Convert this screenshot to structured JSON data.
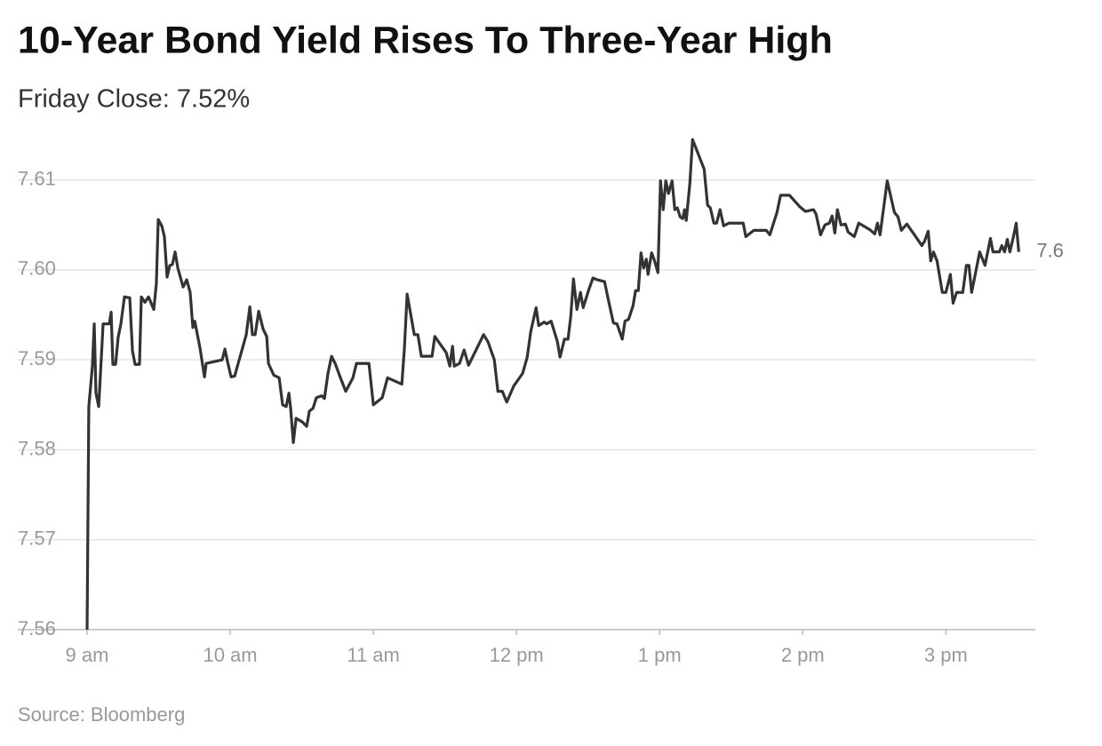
{
  "chart_data": {
    "type": "line",
    "title": "10-Year Bond Yield Rises To Three-Year High",
    "subtitle": "Friday Close: 7.52%",
    "source": "Source: Bloomberg",
    "x": [
      9.0,
      9.012,
      9.037,
      9.05,
      9.062,
      9.081,
      9.112,
      9.155,
      9.168,
      9.18,
      9.199,
      9.217,
      9.236,
      9.261,
      9.298,
      9.317,
      9.335,
      9.366,
      9.379,
      9.404,
      9.429,
      9.466,
      9.484,
      9.497,
      9.522,
      9.54,
      9.559,
      9.578,
      9.596,
      9.615,
      9.634,
      9.671,
      9.696,
      9.72,
      9.739,
      9.752,
      9.789,
      9.82,
      9.832,
      9.944,
      9.963,
      9.981,
      10.006,
      10.031,
      10.112,
      10.137,
      10.155,
      10.174,
      10.199,
      10.23,
      10.255,
      10.267,
      10.304,
      10.342,
      10.366,
      10.391,
      10.41,
      10.422,
      10.441,
      10.46,
      10.503,
      10.534,
      10.553,
      10.578,
      10.602,
      10.64,
      10.658,
      10.683,
      10.708,
      10.733,
      10.77,
      10.807,
      10.857,
      10.882,
      10.969,
      11.0,
      11.062,
      11.099,
      11.199,
      11.217,
      11.236,
      11.286,
      11.311,
      11.335,
      11.41,
      11.429,
      11.509,
      11.534,
      11.553,
      11.565,
      11.602,
      11.634,
      11.665,
      11.77,
      11.801,
      11.845,
      11.87,
      11.901,
      11.932,
      11.981,
      12.043,
      12.075,
      12.099,
      12.137,
      12.155,
      12.193,
      12.211,
      12.242,
      12.267,
      12.286,
      12.304,
      12.335,
      12.36,
      12.379,
      12.398,
      12.422,
      12.447,
      12.466,
      12.503,
      12.534,
      12.565,
      12.615,
      12.64,
      12.677,
      12.702,
      12.739,
      12.758,
      12.783,
      12.814,
      12.832,
      12.851,
      12.87,
      12.888,
      12.907,
      12.919,
      12.944,
      12.963,
      12.988,
      13.006,
      13.025,
      13.043,
      13.062,
      13.087,
      13.106,
      13.124,
      13.143,
      13.161,
      13.174,
      13.186,
      13.211,
      13.23,
      13.311,
      13.335,
      13.354,
      13.379,
      13.398,
      13.422,
      13.447,
      13.484,
      13.584,
      13.602,
      13.658,
      13.745,
      13.77,
      13.82,
      13.845,
      13.907,
      13.981,
      14.019,
      14.075,
      14.093,
      14.124,
      14.155,
      14.186,
      14.205,
      14.224,
      14.242,
      14.267,
      14.298,
      14.317,
      14.36,
      14.391,
      14.466,
      14.503,
      14.522,
      14.54,
      14.59,
      14.64,
      14.665,
      14.689,
      14.727,
      14.789,
      14.832,
      14.851,
      14.876,
      14.894,
      14.913,
      14.938,
      14.975,
      15.0,
      15.031,
      15.05,
      15.075,
      15.118,
      15.143,
      15.161,
      15.18,
      15.236,
      15.273,
      15.311,
      15.329,
      15.373,
      15.391,
      15.41,
      15.429,
      15.447,
      15.472,
      15.491,
      15.509
    ],
    "series": [
      {
        "name": "10-Year Bond Yield",
        "color": "#333333",
        "values": [
          7.56,
          7.5848,
          7.5893,
          7.594,
          7.5863,
          7.5848,
          7.594,
          7.594,
          7.5953,
          7.5895,
          7.5895,
          7.5925,
          7.594,
          7.597,
          7.5969,
          7.591,
          7.5895,
          7.5895,
          7.597,
          7.5964,
          7.597,
          7.5956,
          7.5985,
          7.6056,
          7.6049,
          7.6037,
          7.5992,
          7.6005,
          7.6006,
          7.602,
          7.6002,
          7.5981,
          7.5989,
          7.5975,
          7.5936,
          7.5943,
          7.5913,
          7.5881,
          7.5896,
          7.59,
          7.5912,
          7.5898,
          7.5881,
          7.5882,
          7.5928,
          7.5959,
          7.5928,
          7.5928,
          7.5954,
          7.5934,
          7.5926,
          7.5896,
          7.5883,
          7.588,
          7.585,
          7.5848,
          7.5863,
          7.5846,
          7.5808,
          7.5835,
          7.5831,
          7.5826,
          7.5843,
          7.5846,
          7.5858,
          7.586,
          7.5857,
          7.5885,
          7.5904,
          7.5896,
          7.588,
          7.5865,
          7.588,
          7.5896,
          7.5896,
          7.585,
          7.5858,
          7.588,
          7.5873,
          7.5913,
          7.5973,
          7.5928,
          7.5928,
          7.5904,
          7.5904,
          7.5926,
          7.5908,
          7.5893,
          7.5915,
          7.5893,
          7.5896,
          7.5911,
          7.5894,
          7.5928,
          7.592,
          7.59,
          7.5865,
          7.5865,
          7.5853,
          7.5871,
          7.5885,
          7.5903,
          7.5931,
          7.5958,
          7.5938,
          7.5942,
          7.594,
          7.5943,
          7.593,
          7.592,
          7.5903,
          7.5923,
          7.5923,
          7.5948,
          7.599,
          7.5956,
          7.5975,
          7.5958,
          7.5977,
          7.5991,
          7.5989,
          7.5987,
          7.5968,
          7.5941,
          7.594,
          7.5923,
          7.5943,
          7.5945,
          7.596,
          7.5977,
          7.5977,
          7.6019,
          7.6002,
          7.6012,
          7.5995,
          7.6019,
          7.6011,
          7.5997,
          7.6099,
          7.6067,
          7.6099,
          7.6085,
          7.6099,
          7.6067,
          7.6069,
          7.6059,
          7.6057,
          7.6067,
          7.6055,
          7.6096,
          7.6145,
          7.6112,
          7.6072,
          7.6069,
          7.6052,
          7.6052,
          7.6067,
          7.6049,
          7.6052,
          7.6052,
          7.6037,
          7.6044,
          7.6044,
          7.6039,
          7.6064,
          7.6083,
          7.6083,
          7.607,
          7.6065,
          7.6067,
          7.6062,
          7.6039,
          7.605,
          7.6052,
          7.606,
          7.6041,
          7.6067,
          7.605,
          7.6051,
          7.6042,
          7.6037,
          7.6052,
          7.6045,
          7.604,
          7.6052,
          7.6039,
          7.6099,
          7.6064,
          7.6059,
          7.6044,
          7.6051,
          7.6037,
          7.6027,
          7.6032,
          7.6043,
          7.601,
          7.602,
          7.601,
          7.5975,
          7.5975,
          7.5995,
          7.5963,
          7.5975,
          7.5975,
          7.6005,
          7.6005,
          7.5975,
          7.602,
          7.6005,
          7.6035,
          7.602,
          7.602,
          7.6027,
          7.602,
          7.6034,
          7.602,
          7.6037,
          7.6052,
          7.602
        ]
      }
    ],
    "last_value_label": "7.6",
    "xlim": [
      9,
      15.6
    ],
    "xticks": [
      {
        "value": 9,
        "label": "9 am"
      },
      {
        "value": 10,
        "label": "10 am"
      },
      {
        "value": 11,
        "label": "11 am"
      },
      {
        "value": 12,
        "label": "12 pm"
      },
      {
        "value": 13,
        "label": "1 pm"
      },
      {
        "value": 14,
        "label": "2 pm"
      },
      {
        "value": 15,
        "label": "3 pm"
      }
    ],
    "ylim": [
      7.56,
      7.615
    ],
    "yticks": [
      7.56,
      7.57,
      7.58,
      7.59,
      {
        "value": 7.6,
        "label": "7.60"
      },
      7.61
    ],
    "grid": true
  }
}
